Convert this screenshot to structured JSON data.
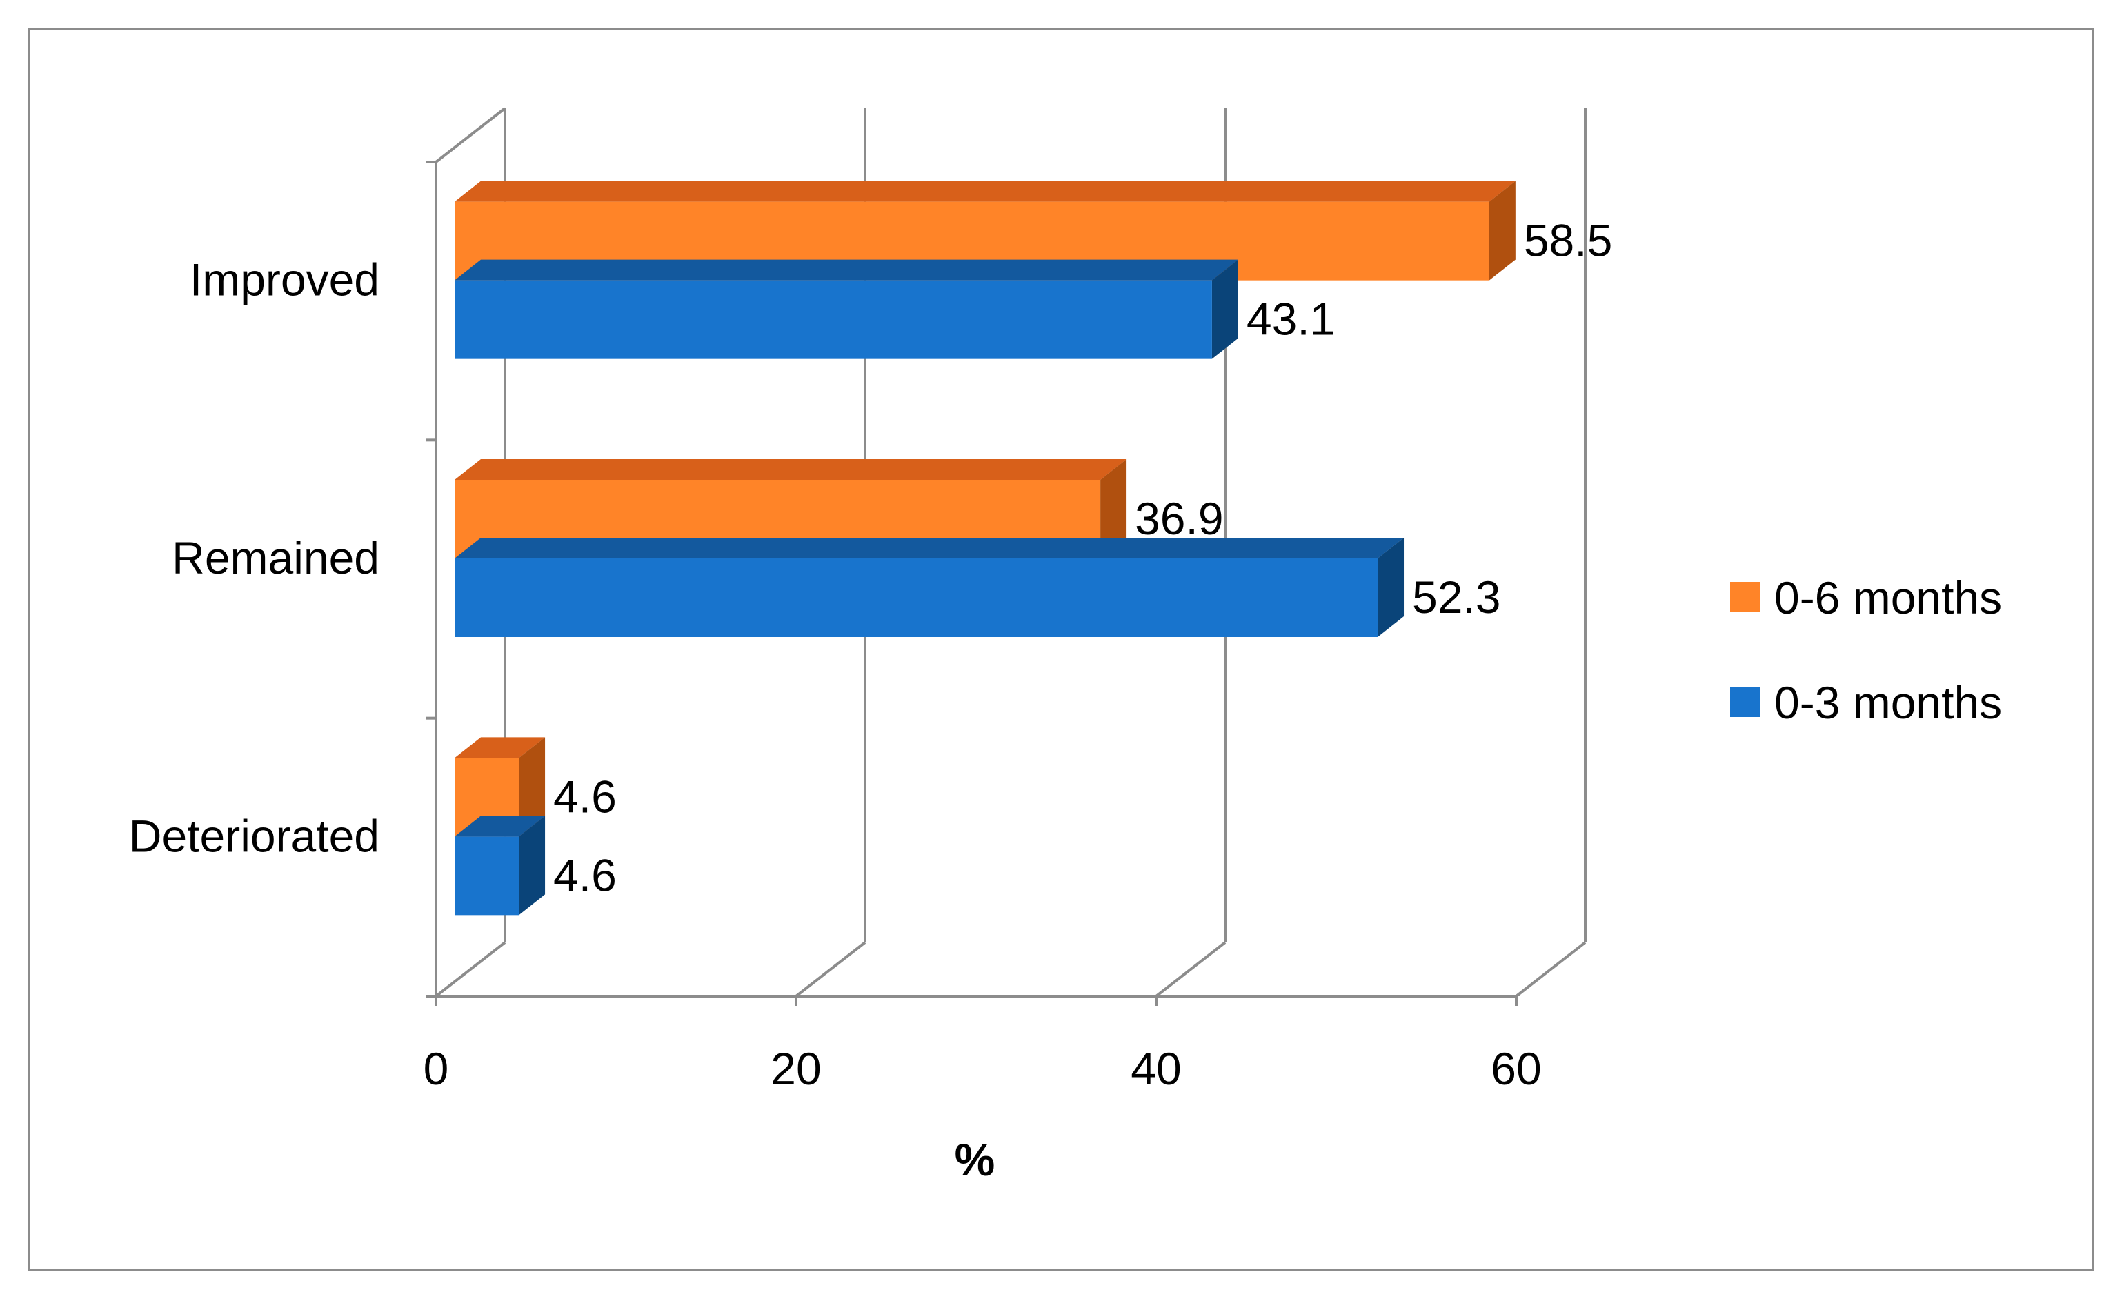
{
  "chart_data": {
    "type": "bar",
    "orientation": "horizontal",
    "style": "3d",
    "categories": [
      "Improved",
      "Remained",
      "Deteriorated"
    ],
    "series": [
      {
        "name": "0-6 months",
        "values": [
          58.5,
          36.9,
          4.6
        ],
        "color": "#FF8428",
        "side_color": "#B0500F",
        "top_color": "#D8601A"
      },
      {
        "name": "0-3 months",
        "values": [
          43.1,
          52.3,
          4.6
        ],
        "color": "#1874CD",
        "side_color": "#0A4479",
        "top_color": "#13599E"
      }
    ],
    "data_labels": {
      "0-6 months": [
        "58.5",
        "36.9",
        "4.6"
      ],
      "0-3 months": [
        "43.1",
        "52.3",
        "4.6"
      ]
    },
    "xlim": [
      0,
      60
    ],
    "x_ticks": [
      "0",
      "20",
      "40",
      "60"
    ],
    "xlabel": "%",
    "ylabel": "",
    "title": "",
    "legend_position": "right",
    "grid": true,
    "grid_color": "#8C8C8C",
    "frame_color": "#8C8C8C"
  }
}
